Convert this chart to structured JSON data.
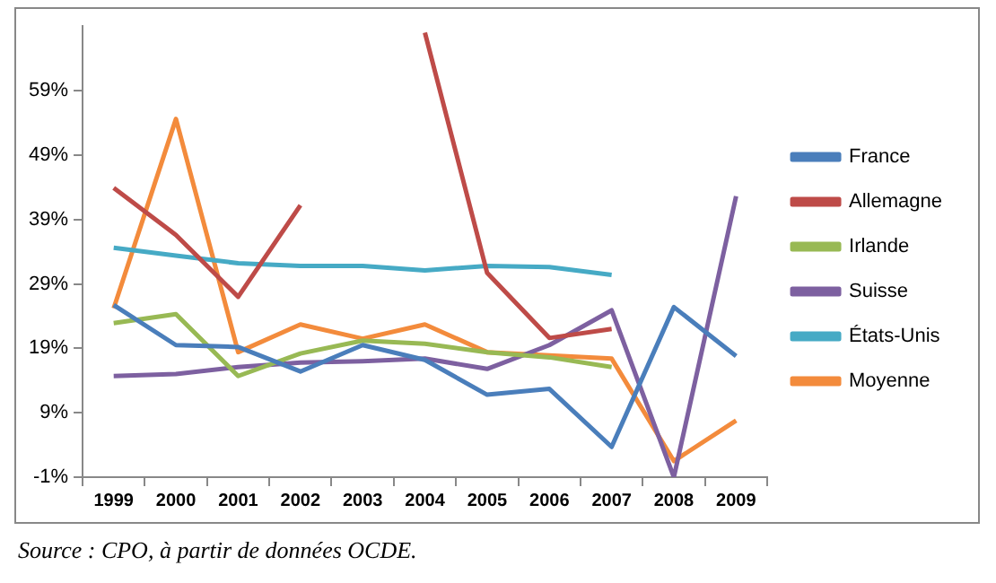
{
  "chart_data": {
    "type": "line",
    "categories": [
      "1999",
      "2000",
      "2001",
      "2002",
      "2003",
      "2004",
      "2005",
      "2006",
      "2007",
      "2008",
      "2009"
    ],
    "series": [
      {
        "name": "France",
        "color": "#4a7ebb",
        "values": [
          25.7,
          19.5,
          19.2,
          15.4,
          19.5,
          17.2,
          11.8,
          12.7,
          3.7,
          25.4,
          17.8
        ]
      },
      {
        "name": "Allemagne",
        "color": "#be4b48",
        "values": [
          43.9,
          36.6,
          27.0,
          41.2,
          null,
          68,
          30.7,
          20.6,
          22.0,
          null,
          null
        ]
      },
      {
        "name": "Irlande",
        "color": "#98b954",
        "values": [
          22.9,
          24.3,
          14.7,
          18.2,
          20.2,
          19.7,
          18.4,
          17.6,
          16.1,
          null,
          null
        ]
      },
      {
        "name": "Suisse",
        "color": "#7d60a0",
        "values": [
          14.7,
          15.0,
          16.1,
          16.8,
          17.0,
          17.4,
          15.8,
          19.5,
          24.9,
          -1,
          42.6
        ]
      },
      {
        "name": "États-Unis",
        "color": "#46aac5",
        "values": [
          34.6,
          33.4,
          32.2,
          31.8,
          31.8,
          31.1,
          31.8,
          31.6,
          30.4,
          null,
          null
        ]
      },
      {
        "name": "Moyenne",
        "color": "#f38b3c",
        "values": [
          25.2,
          54.6,
          18.4,
          22.7,
          20.5,
          22.7,
          18.4,
          17.9,
          17.4,
          1.5,
          7.8
        ]
      }
    ],
    "ylim": [
      -1,
      69
    ],
    "yticks": [
      {
        "value": -1,
        "label": "-1%"
      },
      {
        "value": 9,
        "label": "9%"
      },
      {
        "value": 19,
        "label": "19%"
      },
      {
        "value": 29,
        "label": "29%"
      },
      {
        "value": 39,
        "label": "39%"
      },
      {
        "value": 49,
        "label": "49%"
      },
      {
        "value": 59,
        "label": "59%"
      }
    ],
    "grid": false,
    "legend": "right",
    "marker": "none",
    "line_style": "solid",
    "annotations": [
      "Source : CPO, à partir de données OCDE."
    ]
  }
}
